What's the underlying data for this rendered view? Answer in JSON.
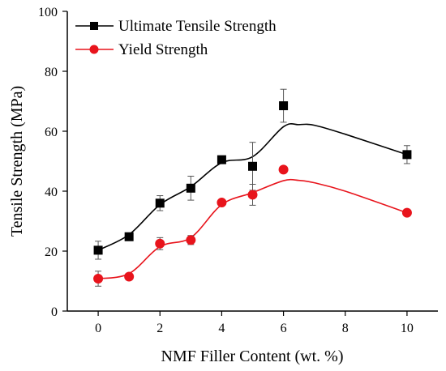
{
  "chart_data": {
    "type": "scatter",
    "xlabel": "NMF Filler Content (wt. %)",
    "ylabel": "Tensile Strength (MPa)",
    "xlim": [
      -1,
      11
    ],
    "ylim": [
      0,
      100
    ],
    "xticks": [
      0,
      2,
      4,
      6,
      8,
      10
    ],
    "yticks": [
      0,
      20,
      40,
      60,
      80,
      100
    ],
    "grid": false,
    "legend_position": "top-left",
    "series": [
      {
        "name": "Ultimate Tensile Strength",
        "color": "#000000",
        "marker": "square",
        "x": [
          0,
          1,
          2,
          3,
          4,
          5,
          6,
          10
        ],
        "y": [
          20.3,
          24.8,
          36.0,
          41.0,
          50.5,
          48.3,
          68.5,
          52.2
        ],
        "error": [
          3.0,
          0.6,
          2.5,
          4.0,
          0.8,
          8.0,
          5.5,
          3.0
        ],
        "trend": [
          [
            0,
            20.3
          ],
          [
            1,
            25.5
          ],
          [
            2,
            35.5
          ],
          [
            3,
            41.5
          ],
          [
            4,
            49.5
          ],
          [
            5,
            51.5
          ],
          [
            6,
            61.5
          ],
          [
            6.5,
            62.2
          ],
          [
            7,
            62.0
          ],
          [
            8,
            59.0
          ],
          [
            10,
            52.2
          ]
        ]
      },
      {
        "name": "Yield Strength",
        "color": "#e8141c",
        "marker": "circle",
        "x": [
          0,
          1,
          2,
          3,
          4,
          5,
          6,
          10
        ],
        "y": [
          10.8,
          11.5,
          22.5,
          23.7,
          36.2,
          38.8,
          47.2,
          32.8
        ],
        "error": [
          2.5,
          0.8,
          2.0,
          1.5,
          0.8,
          3.5,
          0,
          0.5
        ],
        "trend": [
          [
            0,
            10.8
          ],
          [
            1,
            12.5
          ],
          [
            2,
            21.5
          ],
          [
            3,
            24.5
          ],
          [
            4,
            35.5
          ],
          [
            5,
            39.5
          ],
          [
            6,
            43.5
          ],
          [
            6.5,
            43.6
          ],
          [
            7,
            42.8
          ],
          [
            8,
            40.0
          ],
          [
            10,
            32.8
          ]
        ]
      }
    ]
  }
}
